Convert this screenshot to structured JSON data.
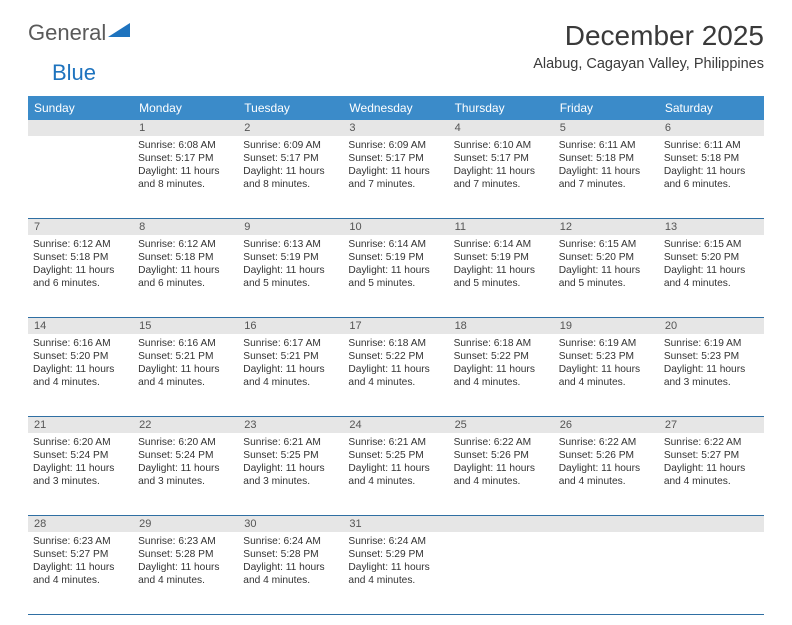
{
  "logo": {
    "word1": "General",
    "word2": "Blue"
  },
  "title": "December 2025",
  "location": "Alabug, Cagayan Valley, Philippines",
  "colors": {
    "header_bg": "#3b8bc9",
    "header_text": "#ffffff",
    "daynum_bg": "#e6e6e6",
    "daynum_text": "#555555",
    "body_text": "#333333",
    "rule": "#2f6fa3",
    "logo_gray": "#5a5a5a",
    "logo_blue": "#1e73be"
  },
  "daynames": [
    "Sunday",
    "Monday",
    "Tuesday",
    "Wednesday",
    "Thursday",
    "Friday",
    "Saturday"
  ],
  "weeks": [
    [
      {
        "num": "",
        "sunrise": "",
        "sunset": "",
        "daylight": ""
      },
      {
        "num": "1",
        "sunrise": "Sunrise: 6:08 AM",
        "sunset": "Sunset: 5:17 PM",
        "daylight": "Daylight: 11 hours and 8 minutes."
      },
      {
        "num": "2",
        "sunrise": "Sunrise: 6:09 AM",
        "sunset": "Sunset: 5:17 PM",
        "daylight": "Daylight: 11 hours and 8 minutes."
      },
      {
        "num": "3",
        "sunrise": "Sunrise: 6:09 AM",
        "sunset": "Sunset: 5:17 PM",
        "daylight": "Daylight: 11 hours and 7 minutes."
      },
      {
        "num": "4",
        "sunrise": "Sunrise: 6:10 AM",
        "sunset": "Sunset: 5:17 PM",
        "daylight": "Daylight: 11 hours and 7 minutes."
      },
      {
        "num": "5",
        "sunrise": "Sunrise: 6:11 AM",
        "sunset": "Sunset: 5:18 PM",
        "daylight": "Daylight: 11 hours and 7 minutes."
      },
      {
        "num": "6",
        "sunrise": "Sunrise: 6:11 AM",
        "sunset": "Sunset: 5:18 PM",
        "daylight": "Daylight: 11 hours and 6 minutes."
      }
    ],
    [
      {
        "num": "7",
        "sunrise": "Sunrise: 6:12 AM",
        "sunset": "Sunset: 5:18 PM",
        "daylight": "Daylight: 11 hours and 6 minutes."
      },
      {
        "num": "8",
        "sunrise": "Sunrise: 6:12 AM",
        "sunset": "Sunset: 5:18 PM",
        "daylight": "Daylight: 11 hours and 6 minutes."
      },
      {
        "num": "9",
        "sunrise": "Sunrise: 6:13 AM",
        "sunset": "Sunset: 5:19 PM",
        "daylight": "Daylight: 11 hours and 5 minutes."
      },
      {
        "num": "10",
        "sunrise": "Sunrise: 6:14 AM",
        "sunset": "Sunset: 5:19 PM",
        "daylight": "Daylight: 11 hours and 5 minutes."
      },
      {
        "num": "11",
        "sunrise": "Sunrise: 6:14 AM",
        "sunset": "Sunset: 5:19 PM",
        "daylight": "Daylight: 11 hours and 5 minutes."
      },
      {
        "num": "12",
        "sunrise": "Sunrise: 6:15 AM",
        "sunset": "Sunset: 5:20 PM",
        "daylight": "Daylight: 11 hours and 5 minutes."
      },
      {
        "num": "13",
        "sunrise": "Sunrise: 6:15 AM",
        "sunset": "Sunset: 5:20 PM",
        "daylight": "Daylight: 11 hours and 4 minutes."
      }
    ],
    [
      {
        "num": "14",
        "sunrise": "Sunrise: 6:16 AM",
        "sunset": "Sunset: 5:20 PM",
        "daylight": "Daylight: 11 hours and 4 minutes."
      },
      {
        "num": "15",
        "sunrise": "Sunrise: 6:16 AM",
        "sunset": "Sunset: 5:21 PM",
        "daylight": "Daylight: 11 hours and 4 minutes."
      },
      {
        "num": "16",
        "sunrise": "Sunrise: 6:17 AM",
        "sunset": "Sunset: 5:21 PM",
        "daylight": "Daylight: 11 hours and 4 minutes."
      },
      {
        "num": "17",
        "sunrise": "Sunrise: 6:18 AM",
        "sunset": "Sunset: 5:22 PM",
        "daylight": "Daylight: 11 hours and 4 minutes."
      },
      {
        "num": "18",
        "sunrise": "Sunrise: 6:18 AM",
        "sunset": "Sunset: 5:22 PM",
        "daylight": "Daylight: 11 hours and 4 minutes."
      },
      {
        "num": "19",
        "sunrise": "Sunrise: 6:19 AM",
        "sunset": "Sunset: 5:23 PM",
        "daylight": "Daylight: 11 hours and 4 minutes."
      },
      {
        "num": "20",
        "sunrise": "Sunrise: 6:19 AM",
        "sunset": "Sunset: 5:23 PM",
        "daylight": "Daylight: 11 hours and 3 minutes."
      }
    ],
    [
      {
        "num": "21",
        "sunrise": "Sunrise: 6:20 AM",
        "sunset": "Sunset: 5:24 PM",
        "daylight": "Daylight: 11 hours and 3 minutes."
      },
      {
        "num": "22",
        "sunrise": "Sunrise: 6:20 AM",
        "sunset": "Sunset: 5:24 PM",
        "daylight": "Daylight: 11 hours and 3 minutes."
      },
      {
        "num": "23",
        "sunrise": "Sunrise: 6:21 AM",
        "sunset": "Sunset: 5:25 PM",
        "daylight": "Daylight: 11 hours and 3 minutes."
      },
      {
        "num": "24",
        "sunrise": "Sunrise: 6:21 AM",
        "sunset": "Sunset: 5:25 PM",
        "daylight": "Daylight: 11 hours and 4 minutes."
      },
      {
        "num": "25",
        "sunrise": "Sunrise: 6:22 AM",
        "sunset": "Sunset: 5:26 PM",
        "daylight": "Daylight: 11 hours and 4 minutes."
      },
      {
        "num": "26",
        "sunrise": "Sunrise: 6:22 AM",
        "sunset": "Sunset: 5:26 PM",
        "daylight": "Daylight: 11 hours and 4 minutes."
      },
      {
        "num": "27",
        "sunrise": "Sunrise: 6:22 AM",
        "sunset": "Sunset: 5:27 PM",
        "daylight": "Daylight: 11 hours and 4 minutes."
      }
    ],
    [
      {
        "num": "28",
        "sunrise": "Sunrise: 6:23 AM",
        "sunset": "Sunset: 5:27 PM",
        "daylight": "Daylight: 11 hours and 4 minutes."
      },
      {
        "num": "29",
        "sunrise": "Sunrise: 6:23 AM",
        "sunset": "Sunset: 5:28 PM",
        "daylight": "Daylight: 11 hours and 4 minutes."
      },
      {
        "num": "30",
        "sunrise": "Sunrise: 6:24 AM",
        "sunset": "Sunset: 5:28 PM",
        "daylight": "Daylight: 11 hours and 4 minutes."
      },
      {
        "num": "31",
        "sunrise": "Sunrise: 6:24 AM",
        "sunset": "Sunset: 5:29 PM",
        "daylight": "Daylight: 11 hours and 4 minutes."
      },
      {
        "num": "",
        "sunrise": "",
        "sunset": "",
        "daylight": ""
      },
      {
        "num": "",
        "sunrise": "",
        "sunset": "",
        "daylight": ""
      },
      {
        "num": "",
        "sunrise": "",
        "sunset": "",
        "daylight": ""
      }
    ]
  ]
}
